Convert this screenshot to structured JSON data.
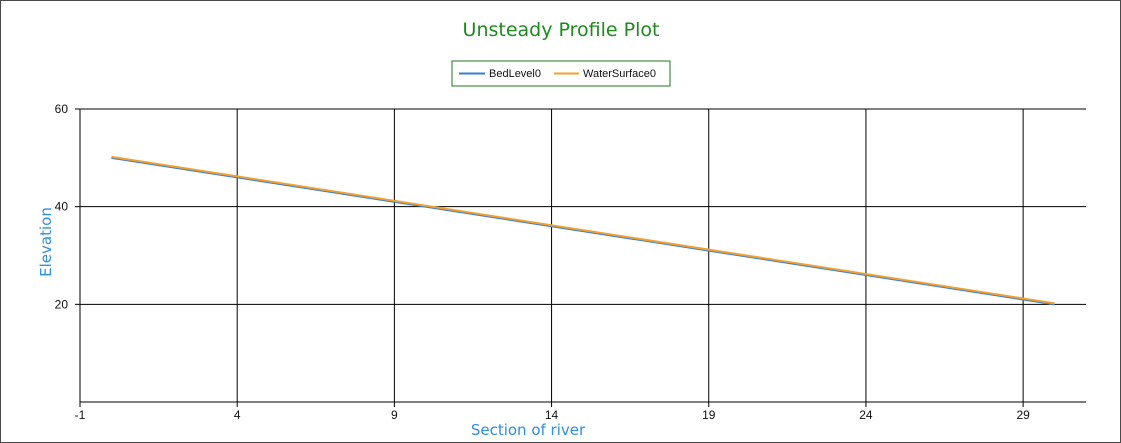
{
  "chart_data": {
    "type": "line",
    "title": "Unsteady Profile Plot",
    "xlabel": "Section of river",
    "ylabel": "Elevation",
    "xlim": [
      -1,
      31
    ],
    "ylim": [
      0,
      60
    ],
    "x_ticks": [
      -1,
      4,
      9,
      14,
      19,
      24,
      29
    ],
    "y_ticks": [
      20,
      40,
      60
    ],
    "grid": true,
    "legend_position": "top-center",
    "series": [
      {
        "name": "BedLevel0",
        "color": "#3a7fd5",
        "x": [
          0,
          30
        ],
        "y": [
          50,
          20
        ]
      },
      {
        "name": "WaterSurface0",
        "color": "#f0a030",
        "x": [
          0,
          30
        ],
        "y": [
          50.2,
          20.2
        ]
      }
    ]
  },
  "colors": {
    "title": "#1e8a1e",
    "axis_title": "#2f8fe0",
    "legend_border": "#1e7a1e",
    "grid": "#000000"
  }
}
